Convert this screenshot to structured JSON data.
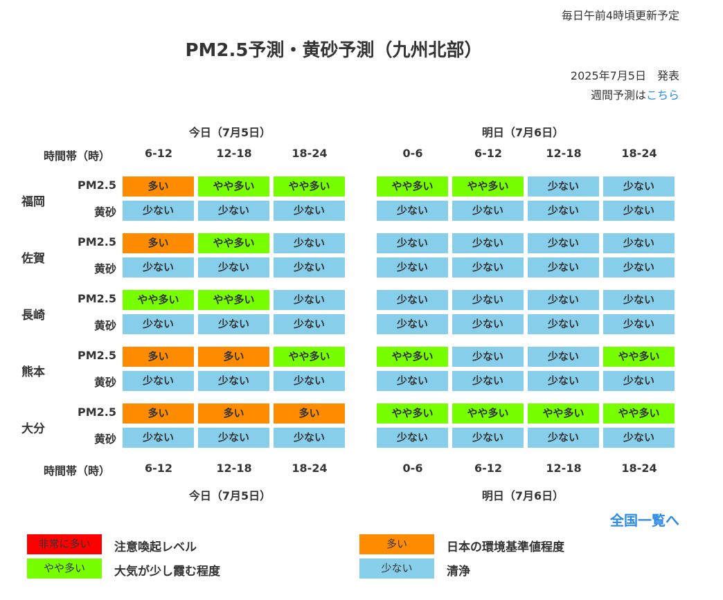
{
  "header": {
    "update_note": "毎日午前4時頃更新予定",
    "title": "PM2.5予測・黄砂予測（九州北部）",
    "issued": "2025年7月5日　発表",
    "weekly_prefix": "週間予測は",
    "weekly_link": "こちら"
  },
  "table": {
    "time_label": "時間帯（時）",
    "today": {
      "label": "今日（7月5日）",
      "slots": [
        "6-12",
        "12-18",
        "18-24"
      ]
    },
    "tomorrow": {
      "label": "明日（7月6日）",
      "slots": [
        "0-6",
        "6-12",
        "12-18",
        "18-24"
      ]
    },
    "row_labels": {
      "pm": "PM2.5",
      "dust": "黄砂"
    },
    "cities": [
      {
        "name": "福岡",
        "pm": [
          "多い",
          "やや多い",
          "やや多い",
          "やや多い",
          "やや多い",
          "少ない",
          "少ない"
        ],
        "dust": [
          "少ない",
          "少ない",
          "少ない",
          "少ない",
          "少ない",
          "少ない",
          "少ない"
        ]
      },
      {
        "name": "佐賀",
        "pm": [
          "多い",
          "やや多い",
          "少ない",
          "少ない",
          "少ない",
          "少ない",
          "少ない"
        ],
        "dust": [
          "少ない",
          "少ない",
          "少ない",
          "少ない",
          "少ない",
          "少ない",
          "少ない"
        ]
      },
      {
        "name": "長崎",
        "pm": [
          "やや多い",
          "やや多い",
          "少ない",
          "少ない",
          "少ない",
          "少ない",
          "少ない"
        ],
        "dust": [
          "少ない",
          "少ない",
          "少ない",
          "少ない",
          "少ない",
          "少ない",
          "少ない"
        ]
      },
      {
        "name": "熊本",
        "pm": [
          "多い",
          "多い",
          "やや多い",
          "やや多い",
          "少ない",
          "少ない",
          "やや多い"
        ],
        "dust": [
          "少ない",
          "少ない",
          "少ない",
          "少ない",
          "少ない",
          "少ない",
          "少ない"
        ]
      },
      {
        "name": "大分",
        "pm": [
          "多い",
          "多い",
          "多い",
          "やや多い",
          "やや多い",
          "やや多い",
          "やや多い"
        ],
        "dust": [
          "少ない",
          "少ない",
          "少ない",
          "少ない",
          "少ない",
          "少ない",
          "少ない"
        ]
      }
    ]
  },
  "colors": {
    "非常に多い": "#ff0000",
    "多い": "#ff8c00",
    "やや多い": "#77ff00",
    "少ない": "#87ceeb"
  },
  "zenkoku_link": "全国一覧へ",
  "legend": [
    {
      "level": "非常に多い",
      "desc": "注意喚起レベル"
    },
    {
      "level": "多い",
      "desc": "日本の環境基準値程度"
    },
    {
      "level": "やや多い",
      "desc": "大気が少し霞む程度"
    },
    {
      "level": "少ない",
      "desc": "清浄"
    }
  ]
}
